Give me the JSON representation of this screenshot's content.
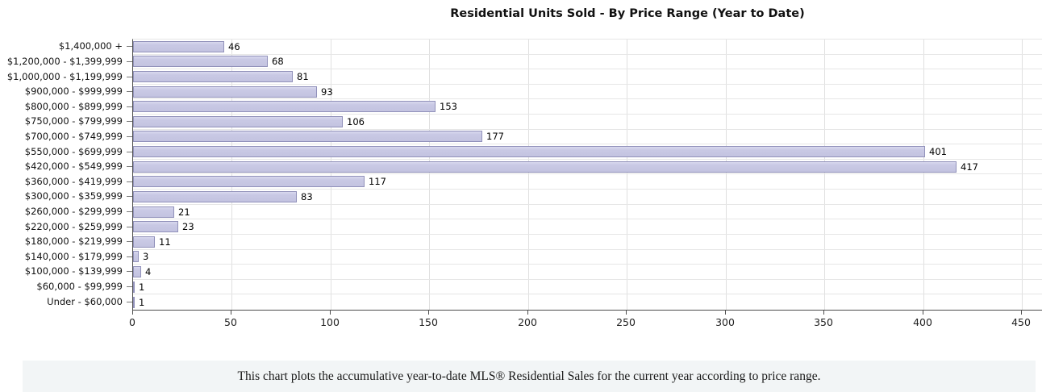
{
  "title": "Residential Units Sold - By Price Range (Year to Date)",
  "footer": {
    "text": "This chart plots the accumulative year-to-date MLS® Residential Sales for the current year according to price range."
  },
  "chart_data": {
    "type": "bar",
    "orientation": "horizontal",
    "title": "Residential Units Sold - By Price Range (Year to Date)",
    "categories": [
      "$1,400,000 +",
      "$1,200,000 - $1,399,999",
      "$1,000,000 - $1,199,999",
      "$900,000 - $999,999",
      "$800,000 - $899,999",
      "$750,000 - $799,999",
      "$700,000 - $749,999",
      "$550,000 - $699,999",
      "$420,000 - $549,999",
      "$360,000 - $419,999",
      "$300,000 - $359,999",
      "$260,000 - $299,999",
      "$220,000 - $259,999",
      "$180,000 - $219,999",
      "$140,000 - $179,999",
      "$100,000 - $139,999",
      "$60,000 - $99,999",
      "Under - $60,000"
    ],
    "values": [
      46,
      68,
      81,
      93,
      153,
      106,
      177,
      401,
      417,
      117,
      83,
      21,
      23,
      11,
      3,
      4,
      1,
      1
    ],
    "xlabel": "",
    "ylabel": "",
    "xlim": [
      0,
      460
    ],
    "xticks": [
      0,
      50,
      100,
      150,
      200,
      250,
      300,
      350,
      400,
      450
    ],
    "grid": true,
    "legend": "none",
    "value_labels": true,
    "bar_color": "#c7c7e2",
    "bar_border_color": "#9191ba",
    "grid_color": "#e0e0e0",
    "axis_color": "#4d4d4d"
  }
}
